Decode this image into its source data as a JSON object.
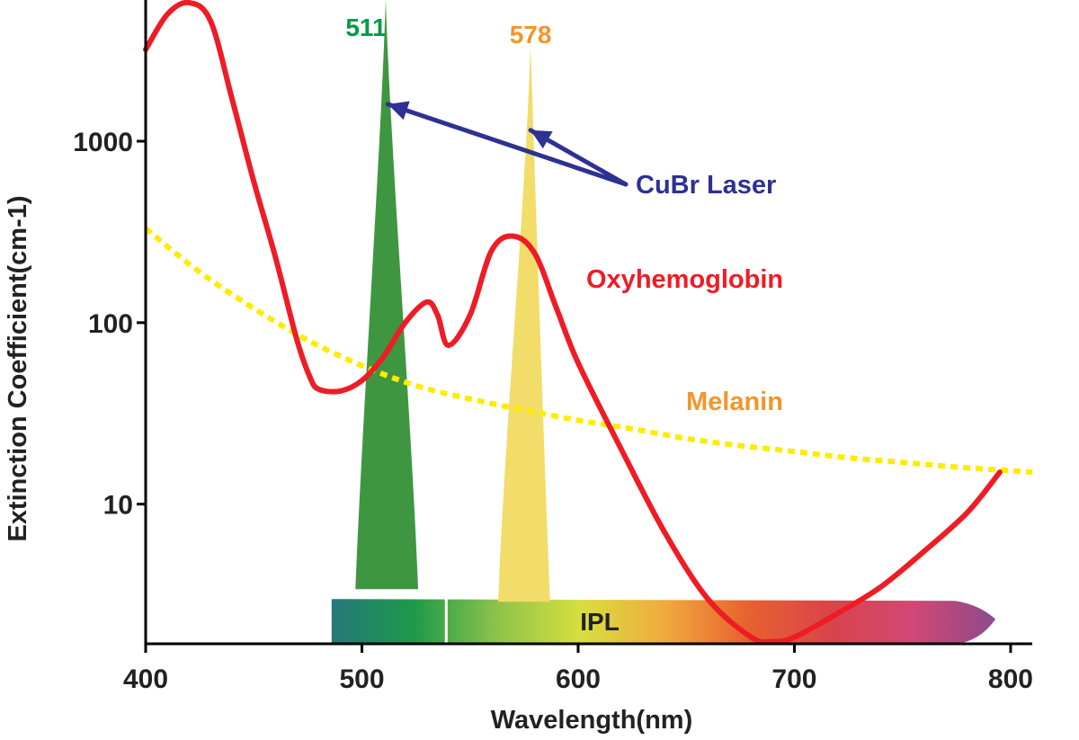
{
  "chart_data": {
    "type": "line",
    "xlabel": "Wavelength(nm)",
    "ylabel": "Extinction Coefficient(cm-1)",
    "xlim": [
      400,
      810
    ],
    "ylim": [
      1.7,
      6000
    ],
    "y_scale": "log",
    "grid": false,
    "x_ticks": [
      {
        "value": 400,
        "label": "400"
      },
      {
        "value": 500,
        "label": "500"
      },
      {
        "value": 600,
        "label": "600"
      },
      {
        "value": 700,
        "label": "700"
      },
      {
        "value": 800,
        "label": "800"
      }
    ],
    "y_ticks": [
      {
        "value": 10,
        "label": "10"
      },
      {
        "value": 100,
        "label": "100"
      },
      {
        "value": 1000,
        "label": "1000"
      }
    ],
    "series": [
      {
        "name": "Oxyhemoglobin",
        "color": "#ee1c25",
        "style": "solid",
        "x": [
          400,
          410,
          420,
          430,
          440,
          450,
          460,
          470,
          476,
          480,
          490,
          500,
          510,
          520,
          530,
          535,
          540,
          550,
          560,
          570,
          580,
          590,
          600,
          620,
          640,
          660,
          680,
          690,
          700,
          720,
          740,
          760,
          780,
          795
        ],
        "y": [
          3200,
          5000,
          5800,
          4600,
          1700,
          600,
          230,
          80,
          50,
          43,
          42,
          48,
          65,
          100,
          130,
          110,
          75,
          110,
          250,
          300,
          240,
          120,
          60,
          20,
          7,
          3,
          1.85,
          1.75,
          1.85,
          2.5,
          3.5,
          5.5,
          9,
          15
        ]
      },
      {
        "name": "Melanin",
        "color": "#ffec00",
        "style": "dotted",
        "x": [
          400,
          425,
          450,
          475,
          500,
          525,
          550,
          575,
          600,
          625,
          650,
          675,
          700,
          725,
          750,
          775,
          800,
          810
        ],
        "y": [
          330,
          190,
          120,
          80,
          58,
          45,
          38,
          33,
          29,
          26,
          23,
          21,
          19.5,
          18,
          17,
          16,
          15.3,
          15
        ]
      }
    ],
    "peaks": [
      {
        "name": "511",
        "center": 511,
        "color": "#3f9641",
        "label_color": "#009b48",
        "x_range": [
          497,
          526
        ],
        "y_bottom": 3.4,
        "y_top": 6000
      },
      {
        "name": "578",
        "center": 578,
        "color": "#f2dc6a",
        "label_color": "#f2962a",
        "x_range": [
          563,
          587
        ],
        "y_bottom": 2.9,
        "y_top": 3400
      }
    ],
    "annotations": [
      {
        "text": "CuBr Laser",
        "color": "#2e3192",
        "x": 650,
        "y": 800,
        "arrows_to": [
          {
            "x": 512,
            "y": 1600
          },
          {
            "x": 578,
            "y": 1150
          }
        ]
      },
      {
        "text": "Oxyhemoglobin",
        "color": "#ee1c25",
        "x": 650,
        "y": 200
      },
      {
        "text": "Melanin",
        "color": "#f2962a",
        "x": 655,
        "y": 30
      }
    ],
    "band": {
      "label": "IPL",
      "x_range": [
        486,
        793
      ],
      "y_range": [
        1.7,
        3.0
      ],
      "marker_x": 539,
      "colors": [
        "#25787a",
        "#1e9a4a",
        "#8ec44b",
        "#d7df3f",
        "#f0ab3e",
        "#e8622f",
        "#d9444a",
        "#d24775",
        "#8d4a8a"
      ]
    }
  }
}
